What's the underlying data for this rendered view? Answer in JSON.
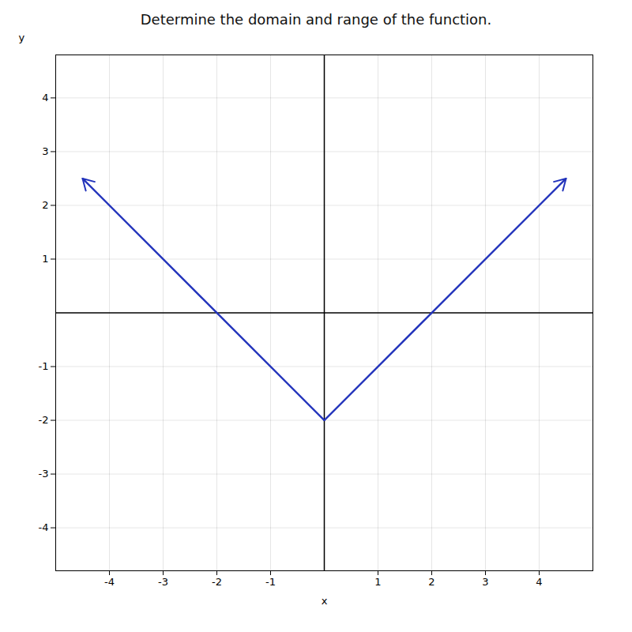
{
  "chart_data": {
    "type": "line",
    "title": "Determine the domain and range of the function.",
    "xlabel": "x",
    "ylabel": "y",
    "x": [
      -4.5,
      0,
      4.5
    ],
    "values": [
      2.5,
      -2,
      2.5
    ],
    "color": "#2233bb",
    "xlim": [
      -5.0,
      5.0
    ],
    "ylim": [
      -4.8,
      4.8
    ],
    "xticks": [
      -4,
      -3,
      -2,
      -1,
      1,
      2,
      3,
      4
    ],
    "yticks": [
      -4,
      -3,
      -2,
      -1,
      1,
      2,
      3,
      4
    ],
    "grid": true
  }
}
